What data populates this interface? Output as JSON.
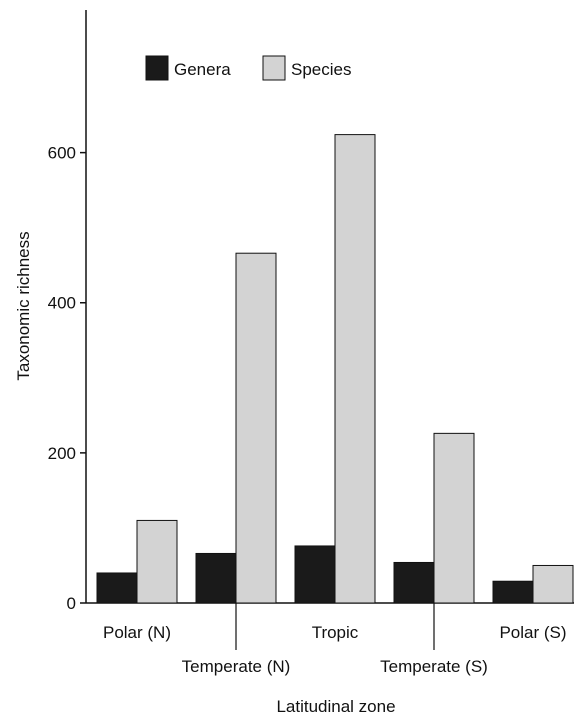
{
  "chart_data": {
    "type": "bar",
    "title": "",
    "xlabel": "Latitudinal zone",
    "ylabel": "Taxonomic richness",
    "categories": [
      "Polar (N)",
      "Temperate (N)",
      "Tropic",
      "Temperate (S)",
      "Polar (S)"
    ],
    "series": [
      {
        "name": "Genera",
        "values": [
          40,
          66,
          76,
          54,
          29
        ],
        "color": "#1a1a1a"
      },
      {
        "name": "Species",
        "values": [
          110,
          466,
          624,
          226,
          50
        ],
        "color": "#d3d3d3"
      }
    ],
    "yticks": [
      0,
      200,
      400,
      600
    ],
    "ylim": [
      0,
      790
    ],
    "grid": false,
    "legend": "top-left"
  }
}
